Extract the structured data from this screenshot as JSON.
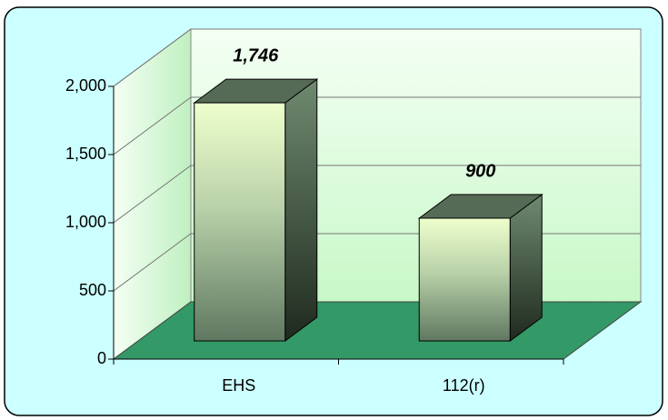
{
  "chart_data": {
    "type": "bar",
    "categories": [
      "EHS",
      "112(r)"
    ],
    "values": [
      1746,
      900
    ],
    "value_labels": [
      "1,746",
      "900"
    ],
    "ylim": [
      0,
      2000
    ],
    "yticks": [
      0,
      500,
      {
        "value": 1000,
        "label": "1,000"
      },
      {
        "value": 1500,
        "label": "1,500"
      },
      {
        "value": 2000,
        "label": "2,000"
      }
    ],
    "grid": true
  }
}
